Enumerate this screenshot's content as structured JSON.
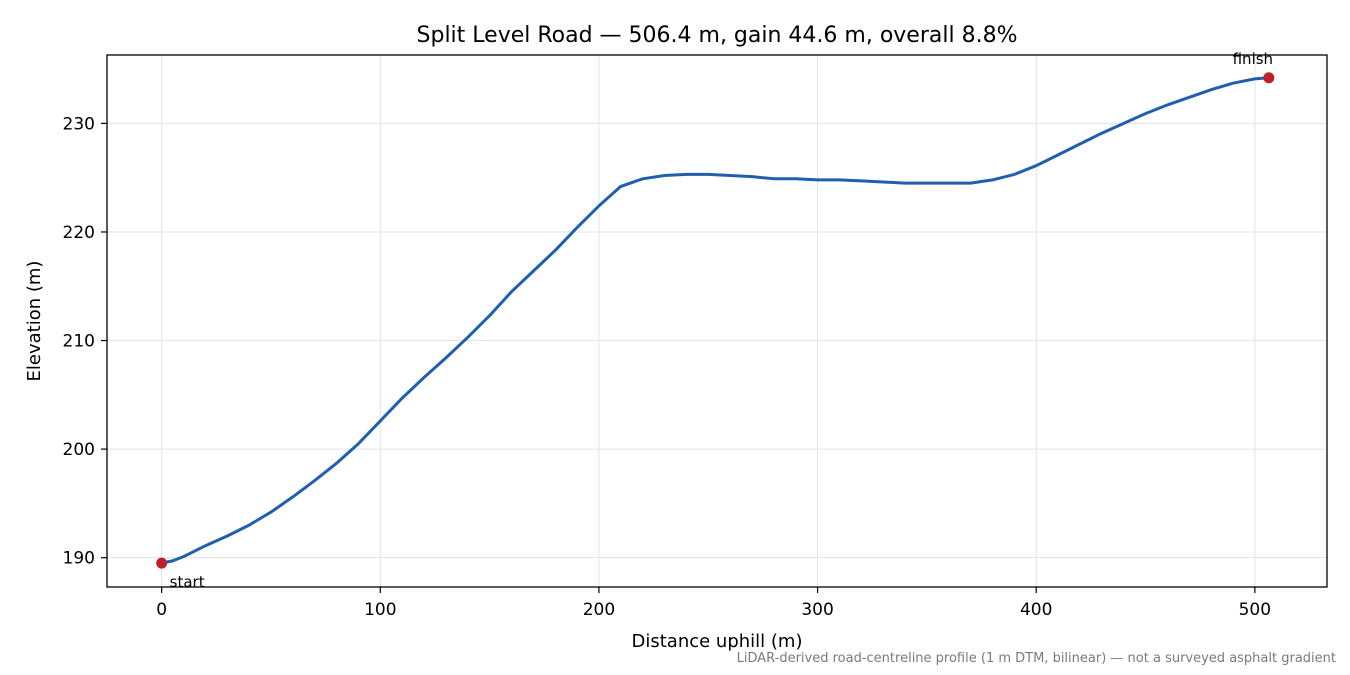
{
  "chart_data": {
    "type": "line",
    "title": "Split Level Road — 506.4 m, gain 44.6 m, overall 8.8%",
    "xlabel": "Distance uphill (m)",
    "ylabel": "Elevation (m)",
    "xlim": [
      -25,
      533
    ],
    "ylim": [
      187.3,
      236.3
    ],
    "xticks": [
      0,
      100,
      200,
      300,
      400,
      500
    ],
    "yticks": [
      190,
      200,
      210,
      220,
      230
    ],
    "grid": true,
    "line_color": "#1f5fae",
    "marker_color": "#c0202e",
    "series": [
      {
        "x": [
          0,
          5,
          10,
          15,
          20,
          30,
          40,
          50,
          60,
          70,
          80,
          90,
          100,
          110,
          120,
          130,
          140,
          150,
          160,
          170,
          180,
          190,
          200,
          210,
          220,
          230,
          240,
          250,
          260,
          270,
          280,
          290,
          300,
          310,
          320,
          330,
          340,
          350,
          360,
          370,
          380,
          390,
          400,
          410,
          420,
          430,
          440,
          450,
          460,
          470,
          480,
          490,
          500,
          506.4
        ],
        "y": [
          189.5,
          189.7,
          190.1,
          190.6,
          191.1,
          192.0,
          193.0,
          194.2,
          195.6,
          197.1,
          198.7,
          200.5,
          202.6,
          204.7,
          206.6,
          208.4,
          210.3,
          212.3,
          214.5,
          216.4,
          218.3,
          220.4,
          222.4,
          224.2,
          224.9,
          225.2,
          225.3,
          225.3,
          225.2,
          225.1,
          224.9,
          224.9,
          224.8,
          224.8,
          224.7,
          224.6,
          224.5,
          224.5,
          224.5,
          224.5,
          224.8,
          225.3,
          226.1,
          227.1,
          228.1,
          229.1,
          230.0,
          230.9,
          231.7,
          232.4,
          233.1,
          233.7,
          234.1,
          234.2
        ]
      }
    ],
    "annotations": [
      {
        "label": "start",
        "x": 0,
        "y": 189.5
      },
      {
        "label": "finish",
        "x": 506.4,
        "y": 234.2
      }
    ],
    "footnote": "LiDAR-derived road-centreline profile (1 m DTM, bilinear) — not a surveyed asphalt gradient"
  }
}
